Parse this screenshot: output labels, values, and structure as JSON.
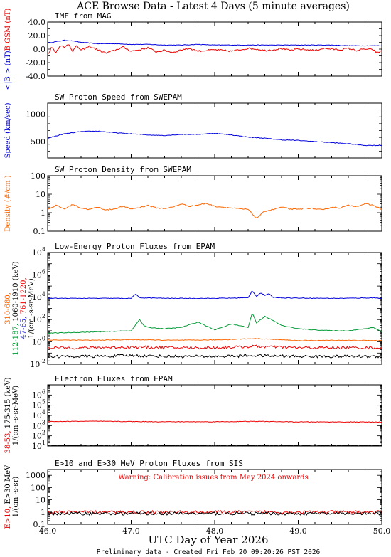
{
  "title": "ACE Browse Data  - Latest 4 Days (5 minute averages)",
  "xlabel": "UTC Day of Year 2026",
  "footer": "Preliminary data - Created Fri Feb 20 09:20:26 PST 2026",
  "x_ticks": [
    "46.0",
    "47.0",
    "48.0",
    "49.0",
    "50.0"
  ],
  "colors": {
    "blue": "#0000dd",
    "red": "#ee0000",
    "green": "#009933",
    "orange": "#ff6600",
    "black": "#000000"
  },
  "chart_data": [
    {
      "type": "line",
      "panel": "imf",
      "title": "IMF from MAG",
      "ylabel_parts": [
        {
          "text": "<|B|> (nT)",
          "color": "#0000dd"
        },
        {
          "text": "B  GSM (nT)",
          "color": "#ee0000"
        }
      ],
      "yscale": "linear",
      "ylim": [
        -40,
        40
      ],
      "y_ticks": [
        "-40.0",
        "-20.0",
        "0.0",
        "20.0",
        "40.0"
      ],
      "xlim": [
        46.0,
        50.0
      ],
      "series": [
        {
          "color": "#0000dd",
          "x": [
            46.0,
            46.1,
            46.2,
            46.3,
            46.4,
            46.6,
            46.8,
            47.0,
            47.2,
            47.4,
            47.6,
            47.8,
            48.0,
            48.2,
            48.4,
            48.6,
            48.8,
            49.0,
            49.2,
            49.4,
            49.6,
            49.8,
            50.0
          ],
          "y": [
            9,
            11,
            13,
            12,
            10,
            8,
            8,
            7,
            7,
            6,
            6,
            7,
            6,
            6,
            6,
            6,
            6,
            6,
            6,
            6,
            5,
            5,
            5
          ]
        },
        {
          "color": "#ee0000",
          "x": [
            46.0,
            46.05,
            46.1,
            46.15,
            46.2,
            46.25,
            46.3,
            46.35,
            46.4,
            46.5,
            46.6,
            46.7,
            46.8,
            46.9,
            47.0,
            47.1,
            47.2,
            47.3,
            47.4,
            47.5,
            47.6,
            47.7,
            47.8,
            47.9,
            48.0,
            48.1,
            48.2,
            48.3,
            48.4,
            48.5,
            48.6,
            48.7,
            48.8,
            48.9,
            49.0,
            49.1,
            49.2,
            49.3,
            49.4,
            49.5,
            49.6,
            49.7,
            49.8,
            49.9,
            49.95,
            50.0
          ],
          "y": [
            -8,
            3,
            -5,
            6,
            2,
            8,
            -3,
            5,
            -2,
            4,
            -1,
            -6,
            -2,
            3,
            -3,
            -1,
            2,
            -4,
            -2,
            -5,
            -1,
            1,
            -3,
            -2,
            -1,
            -2,
            -3,
            -1,
            1,
            0,
            -2,
            -1,
            1,
            -2,
            0,
            -1,
            -2,
            1,
            0,
            -1,
            1,
            -2,
            0,
            -1,
            -6,
            -2
          ]
        }
      ]
    },
    {
      "type": "line",
      "panel": "speed",
      "title": "SW Proton Speed from SWEPAM",
      "ylabel_parts": [
        {
          "text": "Speed (km/sec)",
          "color": "#0000dd"
        }
      ],
      "yscale": "linear",
      "ylim": [
        200,
        1200
      ],
      "y_ticks": [
        "500",
        "1000"
      ],
      "xlim": [
        46.0,
        50.0
      ],
      "series": [
        {
          "color": "#0000dd",
          "x": [
            46.0,
            46.2,
            46.4,
            46.6,
            46.8,
            47.0,
            47.2,
            47.4,
            47.6,
            47.8,
            48.0,
            48.2,
            48.4,
            48.6,
            48.8,
            49.0,
            49.2,
            49.4,
            49.6,
            49.8,
            50.0
          ],
          "y": [
            560,
            640,
            680,
            690,
            660,
            640,
            620,
            610,
            630,
            630,
            650,
            620,
            580,
            560,
            530,
            520,
            500,
            480,
            460,
            430,
            430
          ]
        }
      ]
    },
    {
      "type": "line",
      "panel": "density",
      "title": "SW Proton Density from SWEPAM",
      "ylabel_parts": [
        {
          "text": "Density (#/cm )",
          "color": "#ff6600"
        }
      ],
      "yscale": "log",
      "ylim": [
        0.1,
        100
      ],
      "y_ticks": [
        "0.1",
        "1",
        "10",
        "100"
      ],
      "xlim": [
        46.0,
        50.0
      ],
      "series": [
        {
          "color": "#ff6600",
          "x": [
            46.0,
            46.1,
            46.2,
            46.3,
            46.4,
            46.5,
            46.6,
            46.7,
            46.8,
            46.9,
            47.0,
            47.1,
            47.2,
            47.3,
            47.4,
            47.5,
            47.6,
            47.7,
            47.8,
            47.9,
            48.0,
            48.1,
            48.2,
            48.3,
            48.4,
            48.5,
            48.6,
            48.7,
            48.8,
            48.9,
            49.0,
            49.1,
            49.2,
            49.3,
            49.4,
            49.5,
            49.6,
            49.7,
            49.8,
            49.9,
            50.0
          ],
          "y": [
            1.5,
            2.5,
            1.6,
            2.8,
            1.8,
            1.5,
            2.0,
            1.4,
            1.6,
            2.2,
            1.6,
            1.9,
            2.5,
            1.8,
            1.7,
            2.0,
            3.0,
            2.2,
            2.6,
            3.2,
            2.2,
            2.0,
            1.8,
            1.6,
            1.5,
            0.5,
            1.2,
            1.5,
            2.0,
            1.6,
            1.5,
            1.8,
            1.6,
            1.4,
            2.0,
            1.8,
            2.5,
            2.2,
            3.0,
            2.5,
            1.5
          ]
        }
      ]
    },
    {
      "type": "line",
      "panel": "proton_flux",
      "title": "Low-Energy Proton Fluxes from EPAM",
      "ylabel_parts": [
        {
          "text": "1/(cm -s-sr-MeV)",
          "color": "#000000"
        }
      ],
      "legend_lines": [
        [
          {
            "text": "310-680,",
            "color": "#ff6600"
          }
        ],
        [
          {
            "text": "112-187, ",
            "color": "#009933"
          },
          {
            "text": "1060-1910 (keV)",
            "color": "#000000"
          }
        ],
        [
          {
            "text": "47-65, ",
            "color": "#0000dd"
          },
          {
            "text": "761-1220, ",
            "color": "#ee0000"
          }
        ]
      ],
      "yscale": "log",
      "ylim": [
        0.01,
        100000000
      ],
      "y_ticks": [
        "10^-2",
        "10^0",
        "10^2",
        "10^4",
        "10^6",
        "10^8"
      ],
      "xlim": [
        46.0,
        50.0
      ],
      "series": [
        {
          "name": "47-65",
          "color": "#0000dd",
          "x": [
            46.0,
            46.5,
            47.0,
            47.05,
            47.1,
            47.3,
            47.5,
            48.0,
            48.4,
            48.45,
            48.5,
            48.55,
            48.6,
            48.65,
            48.7,
            48.8,
            49.0,
            49.5,
            49.9,
            50.0
          ],
          "y": [
            8000,
            8000,
            8000,
            20000,
            9000,
            8500,
            8000,
            8000,
            9000,
            40000,
            12000,
            25000,
            15000,
            20000,
            10000,
            9000,
            8500,
            8000,
            9000,
            8000
          ]
        },
        {
          "name": "112-187",
          "color": "#009933",
          "x": [
            46.0,
            46.3,
            46.6,
            47.0,
            47.1,
            47.15,
            47.2,
            47.4,
            47.6,
            47.8,
            48.0,
            48.2,
            48.4,
            48.45,
            48.5,
            48.6,
            48.7,
            48.8,
            49.0,
            49.2,
            49.4,
            49.6,
            49.8,
            49.9,
            50.0
          ],
          "y": [
            6,
            7,
            8,
            10,
            100,
            30,
            20,
            15,
            20,
            60,
            12,
            40,
            20,
            400,
            50,
            200,
            80,
            30,
            15,
            12,
            10,
            10,
            15,
            20,
            8
          ]
        },
        {
          "name": "310-680",
          "color": "#ff6600",
          "x": [
            46.0,
            46.5,
            47.0,
            47.5,
            48.0,
            48.5,
            49.0,
            49.5,
            50.0
          ],
          "y": [
            1.5,
            1.4,
            1.6,
            1.4,
            1.5,
            2.0,
            1.3,
            1.4,
            1.3
          ]
        },
        {
          "name": "761-1220",
          "color": "#ee0000",
          "x": [
            46.0,
            46.5,
            47.0,
            47.5,
            48.0,
            48.5,
            49.0,
            49.5,
            50.0
          ],
          "y": [
            0.3,
            0.3,
            0.35,
            0.3,
            0.3,
            0.4,
            0.3,
            0.3,
            0.3
          ]
        },
        {
          "name": "1060-1910",
          "color": "#000000",
          "x": [
            46.0,
            46.5,
            47.0,
            47.5,
            48.0,
            48.5,
            49.0,
            49.5,
            50.0
          ],
          "y": [
            0.05,
            0.05,
            0.06,
            0.05,
            0.05,
            0.06,
            0.05,
            0.05,
            0.05
          ]
        }
      ]
    },
    {
      "type": "line",
      "panel": "electron_flux",
      "title": "Electron Fluxes from EPAM",
      "ylabel_parts": [
        {
          "text": "1/(cm -s-sr-MeV)",
          "color": "#000000"
        }
      ],
      "legend_lines": [
        [
          {
            "text": "38-53, ",
            "color": "#ee0000"
          },
          {
            "text": "175-315 (keV)",
            "color": "#000000"
          }
        ]
      ],
      "yscale": "log",
      "ylim": [
        10,
        10000000
      ],
      "y_ticks": [
        "10^1",
        "10^2",
        "10^3",
        "10^4",
        "10^5",
        "10^6"
      ],
      "xlim": [
        46.0,
        50.0
      ],
      "series": [
        {
          "name": "38-53",
          "color": "#ee0000",
          "x": [
            46.0,
            46.5,
            47.0,
            47.5,
            48.0,
            48.5,
            49.0,
            49.5,
            50.0
          ],
          "y": [
            2500,
            2700,
            2500,
            2400,
            2400,
            2600,
            2300,
            2300,
            2200
          ]
        },
        {
          "name": "175-315",
          "color": "#000000",
          "x": [
            46.0,
            47.0,
            48.0,
            49.0,
            50.0
          ],
          "y": [
            11,
            12,
            11,
            11,
            11
          ]
        }
      ]
    },
    {
      "type": "line",
      "panel": "sis",
      "title": "E>10 and E>30 MeV Proton Fluxes from SIS",
      "annotation": "Warning: Calibration issues from May 2024 onwards",
      "ylabel_parts": [
        {
          "text": "1/(cm -s-sr)",
          "color": "#000000"
        }
      ],
      "legend_lines": [
        [
          {
            "text": "E>10, ",
            "color": "#ee0000"
          },
          {
            "text": "E>30 MeV",
            "color": "#000000"
          }
        ]
      ],
      "yscale": "log",
      "ylim": [
        0.1,
        3000
      ],
      "y_ticks": [
        "0.1",
        "1",
        "10",
        "100",
        "1000"
      ],
      "xlim": [
        46.0,
        50.0
      ],
      "series": [
        {
          "name": "E>10",
          "color": "#ee0000",
          "x": [
            46.0,
            47.0,
            48.0,
            49.0,
            50.0
          ],
          "y": [
            1.0,
            1.0,
            1.0,
            1.0,
            1.0
          ]
        },
        {
          "name": "E>30",
          "color": "#000000",
          "x": [
            46.0,
            47.0,
            48.0,
            49.0,
            50.0
          ],
          "y": [
            0.75,
            0.75,
            0.75,
            0.75,
            0.75
          ]
        }
      ]
    }
  ]
}
